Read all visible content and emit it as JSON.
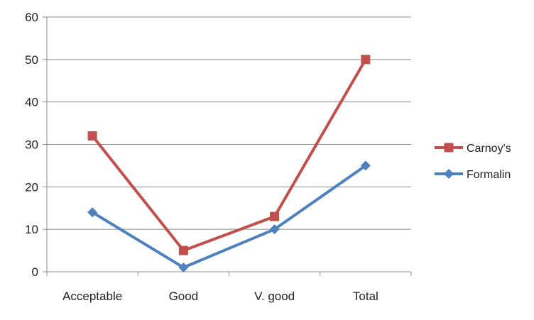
{
  "chart_data": {
    "type": "line",
    "title": "",
    "xlabel": "",
    "ylabel": "",
    "categories": [
      "Acceptable",
      "Good",
      "V. good",
      "Total"
    ],
    "ylim": [
      0,
      60
    ],
    "yticks": [
      0,
      10,
      20,
      30,
      40,
      50,
      60
    ],
    "grid": true,
    "legend_position": "right",
    "series": [
      {
        "name": "Carnoy's",
        "values": [
          32,
          5,
          13,
          50
        ],
        "color": "#C0504D",
        "marker": "square"
      },
      {
        "name": "Formalin",
        "values": [
          14,
          1,
          10,
          25
        ],
        "color": "#4F81BD",
        "marker": "diamond"
      }
    ]
  }
}
